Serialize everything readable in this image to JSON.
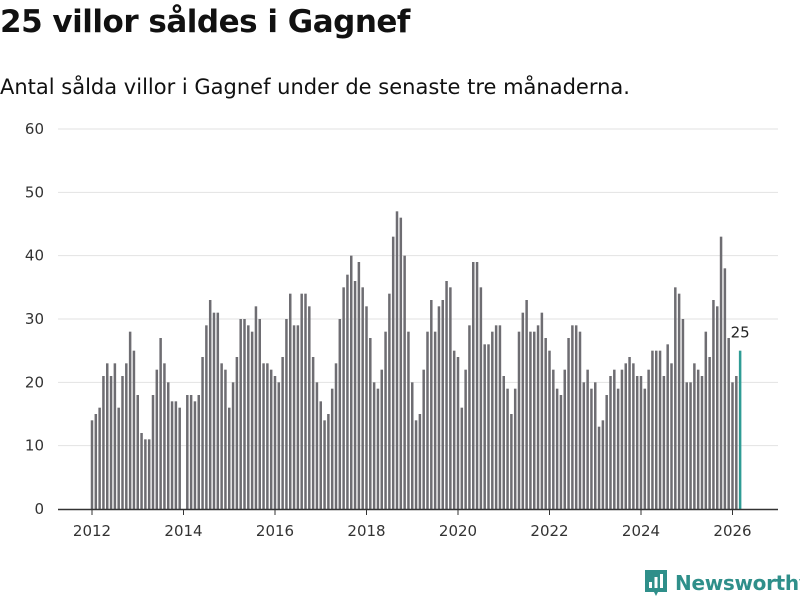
{
  "header": {
    "title": "25 villor såldes i Gagnef",
    "subtitle": "Antal sålda villor i Gagnef under de senaste tre månaderna."
  },
  "brand": {
    "name": "Newsworthy",
    "color": "#2f8f8a"
  },
  "colors": {
    "bar": "#6e6d72",
    "highlight": "#2f9c95",
    "grid": "#e2e2e2",
    "axis": "#333333"
  },
  "chart_data": {
    "type": "bar",
    "title": "25 villor såldes i Gagnef",
    "subtitle": "Antal sålda villor i Gagnef under de senaste tre månaderna.",
    "xlabel": "",
    "ylabel": "",
    "ylim": [
      0,
      60
    ],
    "yticks": [
      0,
      10,
      20,
      30,
      40,
      50,
      60
    ],
    "xticks": [
      "2012",
      "2014",
      "2016",
      "2018",
      "2020",
      "2022",
      "2024",
      "2026"
    ],
    "grid": true,
    "start": "2012-01",
    "interval": "month",
    "values": [
      14,
      15,
      16,
      21,
      23,
      21,
      23,
      16,
      21,
      23,
      28,
      25,
      18,
      12,
      11,
      11,
      18,
      22,
      27,
      23,
      20,
      17,
      17,
      16,
      0,
      18,
      18,
      17,
      18,
      24,
      29,
      33,
      31,
      31,
      23,
      22,
      16,
      20,
      24,
      30,
      30,
      29,
      28,
      32,
      30,
      23,
      23,
      22,
      21,
      20,
      24,
      30,
      34,
      29,
      29,
      34,
      34,
      32,
      24,
      20,
      17,
      14,
      15,
      19,
      23,
      30,
      35,
      37,
      40,
      36,
      39,
      35,
      32,
      27,
      20,
      19,
      22,
      28,
      34,
      43,
      47,
      46,
      40,
      28,
      20,
      14,
      15,
      22,
      28,
      33,
      28,
      32,
      33,
      36,
      35,
      25,
      24,
      16,
      22,
      29,
      39,
      39,
      35,
      26,
      26,
      28,
      29,
      29,
      21,
      19,
      15,
      19,
      28,
      31,
      33,
      28,
      28,
      29,
      31,
      27,
      25,
      22,
      19,
      18,
      22,
      27,
      29,
      29,
      28,
      20,
      22,
      19,
      20,
      13,
      14,
      18,
      21,
      22,
      19,
      22,
      23,
      24,
      23,
      21,
      21,
      19,
      22,
      25,
      25,
      25,
      21,
      26,
      23,
      35,
      34,
      30,
      20,
      20,
      23,
      22,
      21,
      28,
      24,
      33,
      32,
      43,
      38,
      27,
      20,
      21,
      25
    ],
    "highlight_last": true,
    "annotations": [
      {
        "label": "25",
        "target": "last-bar"
      }
    ]
  }
}
